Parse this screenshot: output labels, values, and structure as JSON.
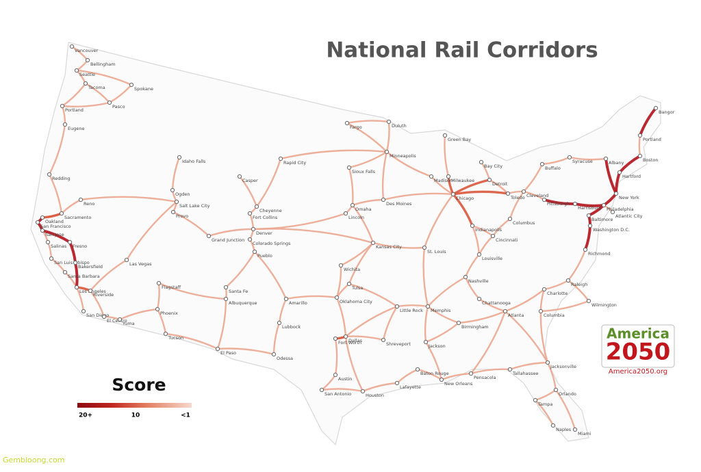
{
  "title": "National Rail Corridors",
  "legend": {
    "title": "Score",
    "labels": [
      "20+",
      "10",
      "<1"
    ]
  },
  "logo": {
    "line1": "America",
    "line2": "2050",
    "url": "America2050.org"
  },
  "watermark": "Gembloong.com",
  "cities": [
    "Vancouver",
    "Bellingham",
    "Seattle",
    "Tacoma",
    "Spokane",
    "Pasco",
    "Portland",
    "Eugene",
    "Redding",
    "Reno",
    "Sacramento",
    "Oakland",
    "San Francisco",
    "San Jose",
    "Salinas",
    "Fresno",
    "San Luis Obispo",
    "Bakersfield",
    "Santa Barbara",
    "Los Angeles",
    "Riverside",
    "San Diego",
    "El Centro",
    "Yuma",
    "Phoenix",
    "Tucson",
    "Flagstaff",
    "Las Vegas",
    "Idaho Falls",
    "Ogden",
    "Salt Lake City",
    "Provo",
    "Grand Junction",
    "Casper",
    "Cheyenne",
    "Fort Collins",
    "Denver",
    "Colorado Springs",
    "Pueblo",
    "Santa Fe",
    "Albuquerque",
    "El Paso",
    "Amarillo",
    "Lubbock",
    "Odessa",
    "Rapid City",
    "Fargo",
    "Duluth",
    "Minneapolis",
    "Sioux Falls",
    "Omaha",
    "Lincoln",
    "Des Moines",
    "Kansas City",
    "Wichita",
    "Tulsa",
    "Oklahoma City",
    "Fort Worth",
    "Dallas",
    "Austin",
    "San Antonio",
    "Houston",
    "Shreveport",
    "Little Rock",
    "Memphis",
    "St. Louis",
    "Madison",
    "Milwaukee",
    "Green Bay",
    "Chicago",
    "Detroit",
    "Bay City",
    "Toledo",
    "Cleveland",
    "Pittsburgh",
    "Indianapolis",
    "Columbus",
    "Cincinnati",
    "Louisville",
    "Nashville",
    "Chattanooga",
    "Birmingham",
    "Atlanta",
    "Jackson",
    "Baton Rouge",
    "New Orleans",
    "Lafayette",
    "Pensacola",
    "Tallahassee",
    "Jacksonville",
    "Orlando",
    "Tampa",
    "Naples",
    "Miami",
    "Columbia",
    "Charlotte",
    "Raleigh",
    "Richmond",
    "Washington D.C.",
    "Baltimore",
    "Philadelphia",
    "New York",
    "Harrisburg",
    "Albany",
    "Syracuse",
    "Buffalo",
    "Boston",
    "Hartford",
    "Portland",
    "Bangor",
    "Wilmington",
    "Atlantic City"
  ]
}
